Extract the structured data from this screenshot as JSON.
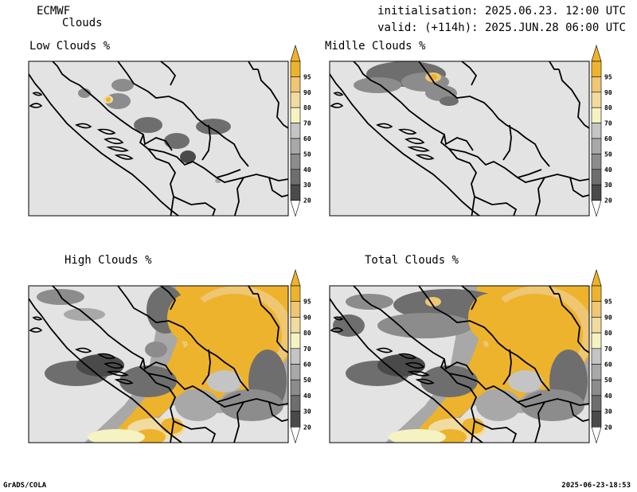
{
  "header": {
    "model": "ECMWF",
    "product": "Clouds",
    "initialisation": "initialisation: 2025.06.23. 12:00 UTC",
    "valid": "valid: (+114h): 2025.JUN.28 06:00 UTC"
  },
  "panels": [
    {
      "title": "Low Clouds %"
    },
    {
      "title": "Midlle Clouds %"
    },
    {
      "title": "High Clouds %"
    },
    {
      "title": "Total Clouds %"
    }
  ],
  "colorbar": {
    "levels": [
      "20",
      "30",
      "40",
      "50",
      "60",
      "70",
      "80",
      "90",
      "95"
    ],
    "colors": [
      "#4a4a4a",
      "#6e6e6e",
      "#8c8c8c",
      "#a8a8a8",
      "#c4c4c4",
      "#f6f3c2",
      "#f0dca0",
      "#efc672",
      "#edb32c"
    ],
    "low_end_color": "#ffffff",
    "top_color": "#edb32c"
  },
  "map_colors": {
    "background": "#e3e3e3",
    "border": "#000000"
  },
  "footer": {
    "left": "GrADS/COLA",
    "right": "2025-06-23-18:53"
  }
}
